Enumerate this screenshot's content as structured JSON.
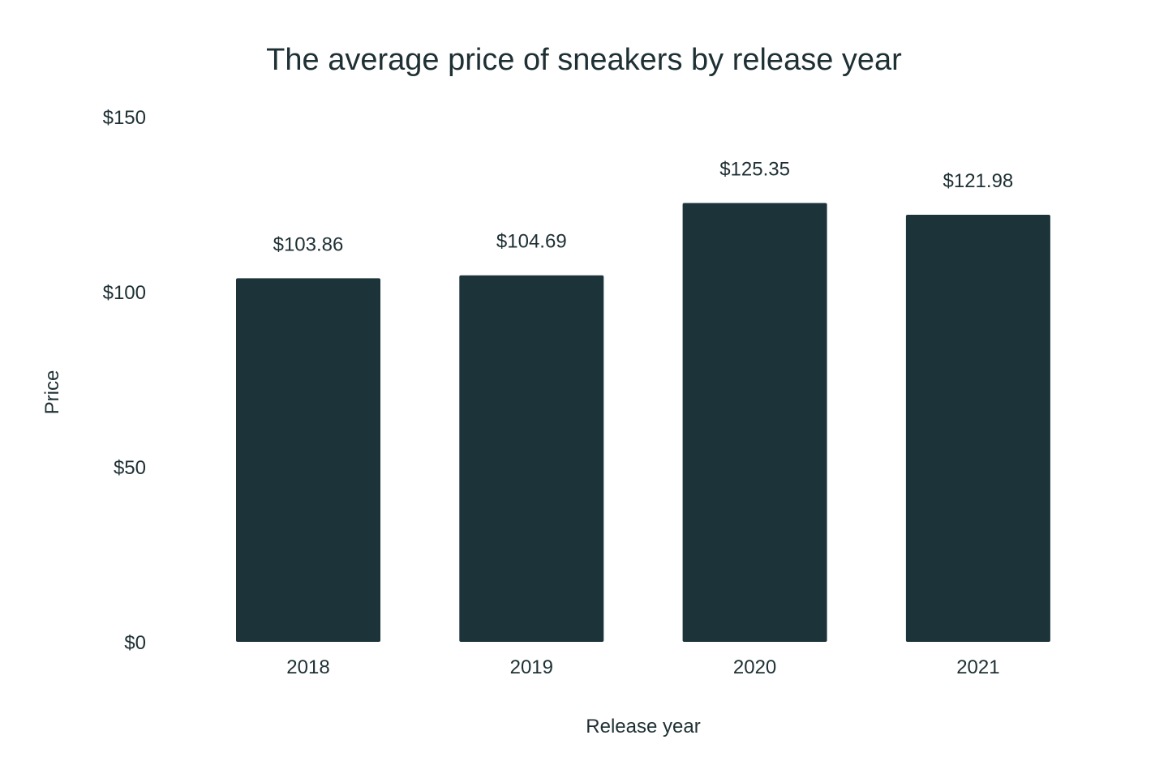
{
  "chart_data": {
    "type": "bar",
    "title": "The average price of sneakers by release year",
    "xlabel": "Release year",
    "ylabel": "Price",
    "categories": [
      "2018",
      "2019",
      "2020",
      "2021"
    ],
    "values": [
      103.86,
      104.69,
      125.35,
      121.98
    ],
    "value_labels": [
      "$103.86",
      "$104.69",
      "$125.35",
      "$121.98"
    ],
    "yticks": [
      0,
      50,
      100,
      150
    ],
    "ytick_labels": [
      "$0",
      "$50",
      "$100",
      "$150"
    ],
    "ylim": [
      0,
      150
    ],
    "grid": false,
    "colors": {
      "bar": "#1c3439",
      "text": "#1e3034"
    }
  }
}
